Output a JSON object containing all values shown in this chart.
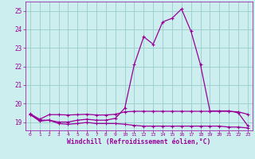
{
  "x": [
    0,
    1,
    2,
    3,
    4,
    5,
    6,
    7,
    8,
    9,
    10,
    11,
    12,
    13,
    14,
    15,
    16,
    17,
    18,
    19,
    20,
    21,
    22,
    23
  ],
  "y_main": [
    19.4,
    19.1,
    19.1,
    19.0,
    19.0,
    19.1,
    19.15,
    19.1,
    19.1,
    19.2,
    19.75,
    22.1,
    23.6,
    23.2,
    24.4,
    24.6,
    25.1,
    23.9,
    22.1,
    19.6,
    19.6,
    19.6,
    19.5,
    18.8
  ],
  "y_upper": [
    19.45,
    19.15,
    19.4,
    19.4,
    19.38,
    19.4,
    19.42,
    19.38,
    19.38,
    19.42,
    19.55,
    19.58,
    19.58,
    19.58,
    19.58,
    19.58,
    19.58,
    19.58,
    19.58,
    19.58,
    19.58,
    19.58,
    19.55,
    19.42
  ],
  "y_lower": [
    19.4,
    19.05,
    19.1,
    18.92,
    18.88,
    18.92,
    18.98,
    18.92,
    18.92,
    18.92,
    18.88,
    18.82,
    18.78,
    18.78,
    18.78,
    18.78,
    18.78,
    18.78,
    18.78,
    18.78,
    18.78,
    18.73,
    18.73,
    18.68
  ],
  "line_color": "#990099",
  "bg_color": "#cceeee",
  "grid_color": "#99cccc",
  "text_color": "#990099",
  "ylabel_vals": [
    19,
    20,
    21,
    22,
    23,
    24,
    25
  ],
  "xlabel_vals": [
    0,
    1,
    2,
    3,
    4,
    5,
    6,
    7,
    8,
    9,
    10,
    11,
    12,
    13,
    14,
    15,
    16,
    17,
    18,
    19,
    20,
    21,
    22,
    23
  ],
  "xlabel": "Windchill (Refroidissement éolien,°C)",
  "ylim": [
    18.55,
    25.5
  ],
  "xlim": [
    -0.5,
    23.5
  ],
  "figsize": [
    3.2,
    2.0
  ],
  "dpi": 100
}
